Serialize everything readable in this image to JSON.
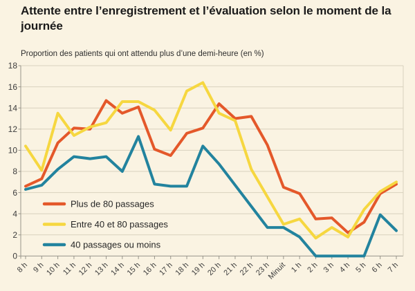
{
  "page": {
    "background_color": "#faf3e2"
  },
  "chart_data": {
    "type": "line",
    "title": "Attente entre l’enregistrement et l’évaluation selon le moment de la journée",
    "subtitle": "Proportion des patients qui ont attendu plus d’une demi-heure (en %)",
    "xlabel": "",
    "ylabel": "",
    "ylim": [
      0,
      18
    ],
    "y_ticks": [
      0,
      2,
      4,
      6,
      8,
      10,
      12,
      14,
      16,
      18
    ],
    "grid": "horizontal",
    "legend_position": "inside-bottom-left",
    "x_labels": [
      "8 h",
      "9 h",
      "10 h",
      "11 h",
      "12 h",
      "13 h",
      "14 h",
      "15 h",
      "16 h",
      "17 h",
      "18 h",
      "19 h",
      "20 h",
      "21 h",
      "22 h",
      "23 h",
      "Minuit",
      "1 h",
      "2 h",
      "3 h",
      "4 h",
      "5 h",
      "6 h",
      "7 h"
    ],
    "series": [
      {
        "name": "Plus de 80 passages",
        "color": "#e4582a",
        "values": [
          6.6,
          7.3,
          10.7,
          12.1,
          12.0,
          14.7,
          13.5,
          14.1,
          10.1,
          9.5,
          11.6,
          12.1,
          14.4,
          13.0,
          13.2,
          10.5,
          6.5,
          5.9,
          3.5,
          3.6,
          2.2,
          3.2,
          5.9,
          6.8
        ]
      },
      {
        "name": "Entre 40 et 80 passages",
        "color": "#f6d740",
        "values": [
          10.4,
          8.1,
          13.5,
          11.4,
          12.2,
          12.6,
          14.6,
          14.6,
          13.8,
          11.9,
          15.6,
          16.4,
          13.5,
          12.8,
          8.2,
          5.6,
          3.0,
          3.5,
          1.7,
          2.7,
          1.8,
          4.4,
          6.1,
          7.0
        ]
      },
      {
        "name": "40 passages ou moins",
        "color": "#22839e",
        "values": [
          6.3,
          6.7,
          8.2,
          9.4,
          9.2,
          9.4,
          8.0,
          11.3,
          6.8,
          6.6,
          6.6,
          10.4,
          8.7,
          6.7,
          4.7,
          2.7,
          2.7,
          1.8,
          0,
          0,
          0,
          0,
          3.9,
          2.4
        ]
      }
    ],
    "colors": {
      "grid": "#d8d1bd",
      "axis": "#98958b",
      "tick_text": "#3d3d3d",
      "legend_text": "#262626"
    }
  }
}
